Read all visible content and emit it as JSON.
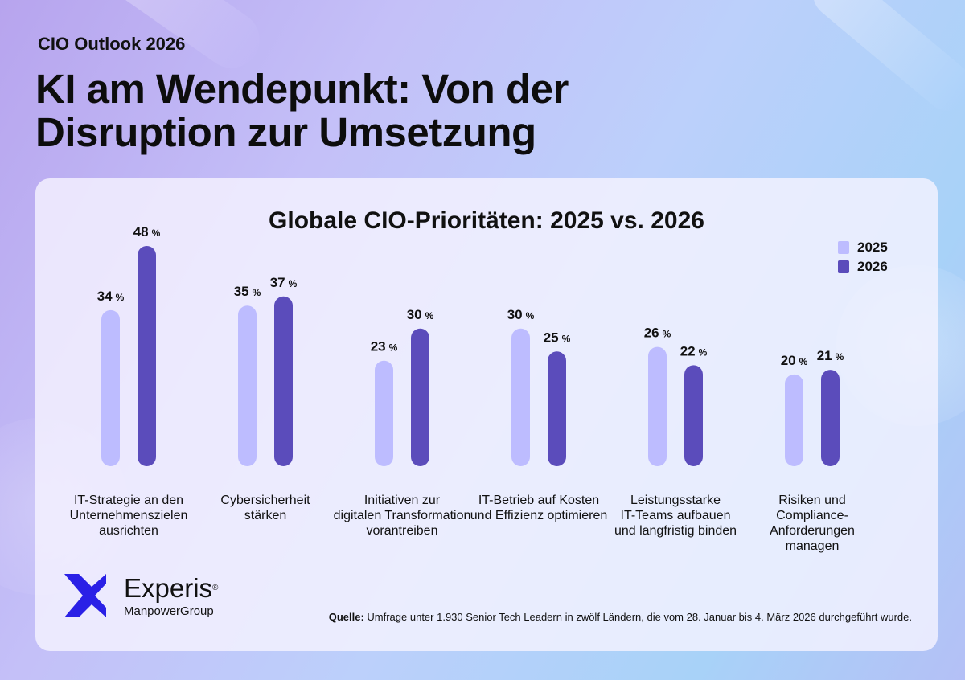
{
  "header": {
    "kicker": "CIO Outlook 2026",
    "title_line1": "KI am Wendepunkt: Von der",
    "title_line2": "Disruption zur Umsetzung"
  },
  "colors": {
    "series_2025": "#bdbcff",
    "series_2026": "#5b4cbb"
  },
  "chart_data": {
    "type": "bar",
    "title": "Globale CIO-Prioritäten: 2025 vs. 2026",
    "unit": "%",
    "ylim": [
      0,
      48
    ],
    "grid": false,
    "legend_position": "top-right",
    "categories": [
      [
        "IT-Strategie an den",
        "Unternehmenszielen",
        "ausrichten"
      ],
      [
        "Cybersicherheit",
        "stärken"
      ],
      [
        "Initiativen zur",
        "digitalen Transformation",
        "vorantreiben"
      ],
      [
        "IT-Betrieb auf Kosten",
        "und Effizienz optimieren"
      ],
      [
        "Leistungsstarke",
        "IT-Teams aufbauen",
        "und langfristig binden"
      ],
      [
        "Risiken und",
        "Compliance-",
        "Anforderungen",
        "managen"
      ]
    ],
    "series": [
      {
        "name": "2025",
        "values": [
          34,
          35,
          23,
          30,
          26,
          20
        ]
      },
      {
        "name": "2026",
        "values": [
          48,
          37,
          30,
          25,
          22,
          21
        ]
      }
    ]
  },
  "footer": {
    "brand": "Experis",
    "brand_mark": "®",
    "brand_sub": "ManpowerGroup",
    "source_label": "Quelle:",
    "source_text": " Umfrage unter 1.930 Senior Tech Leadern in zwölf Ländern, die vom 28. Januar bis 4. März 2026 durchgeführt wurde."
  }
}
